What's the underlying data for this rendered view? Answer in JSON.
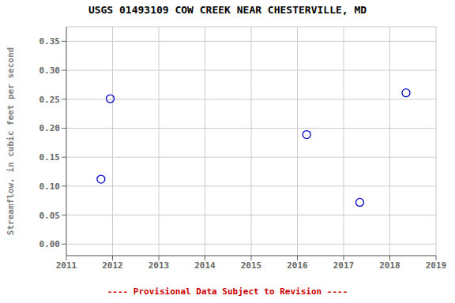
{
  "chart_data": {
    "type": "scatter",
    "title": "USGS 01493109 COW CREEK NEAR CHESTERVILLE, MD",
    "ylabel": "Streamflow, in cubic feet per second",
    "x": [
      2011.75,
      2011.95,
      2016.2,
      2017.35,
      2018.35
    ],
    "values": [
      0.112,
      0.251,
      0.189,
      0.072,
      0.261
    ],
    "color": "#0000cc",
    "marker": "circle",
    "xlim": [
      2011,
      2019
    ],
    "ylim": [
      -0.02,
      0.375
    ],
    "xticks": [
      2011,
      2012,
      2013,
      2014,
      2015,
      2016,
      2017,
      2018,
      2019
    ],
    "yticks": [
      {
        "value": 0,
        "label": "0.00"
      },
      0.05,
      {
        "value": 0.1,
        "label": "0.10"
      },
      0.15,
      {
        "value": 0.2,
        "label": "0.20"
      },
      0.25,
      {
        "value": 0.3,
        "label": "0.30"
      },
      0.35
    ],
    "grid": true,
    "annotations": [
      {
        "text": "---- Provisional Data Subject to Revision ----",
        "color": "#cc0000"
      }
    ]
  }
}
